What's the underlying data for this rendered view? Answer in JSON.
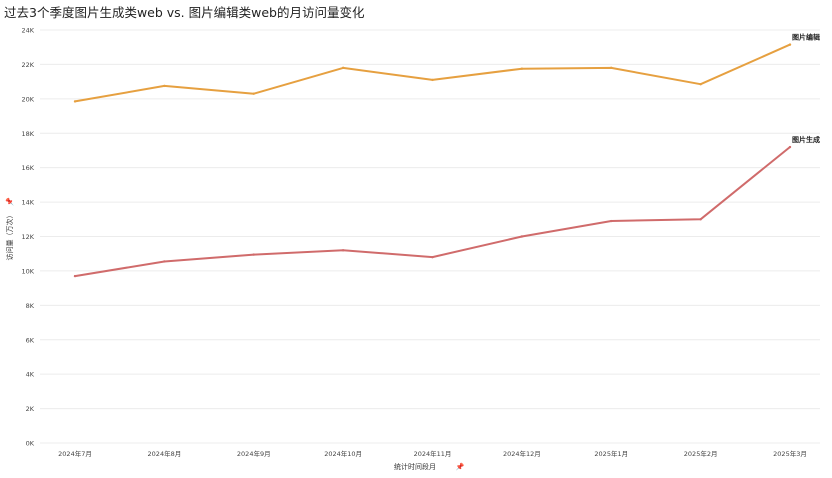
{
  "chart_data": {
    "type": "line",
    "title": "过去3个季度图片生成类web vs. 图片编辑类web的月访问量变化",
    "xlabel": "统计时间段月",
    "ylabel": "访问量（万次）",
    "categories": [
      "2024年7月",
      "2024年8月",
      "2024年9月",
      "2024年10月",
      "2024年11月",
      "2024年12月",
      "2025年1月",
      "2025年2月",
      "2025年3月"
    ],
    "y_ticks": [
      "0K",
      "2K",
      "4K",
      "6K",
      "8K",
      "10K",
      "12K",
      "14K",
      "16K",
      "18K",
      "20K",
      "22K",
      "24K"
    ],
    "ylim": [
      0,
      24000
    ],
    "grid": true,
    "series": [
      {
        "name": "图片编辑",
        "color": "#e6a040",
        "values": [
          19850,
          20750,
          20300,
          21800,
          21100,
          21750,
          21800,
          20850,
          23150
        ]
      },
      {
        "name": "图片生成",
        "color": "#d06b6b",
        "values": [
          9700,
          10550,
          10950,
          11200,
          10800,
          12000,
          12900,
          13000,
          17200
        ]
      }
    ]
  }
}
